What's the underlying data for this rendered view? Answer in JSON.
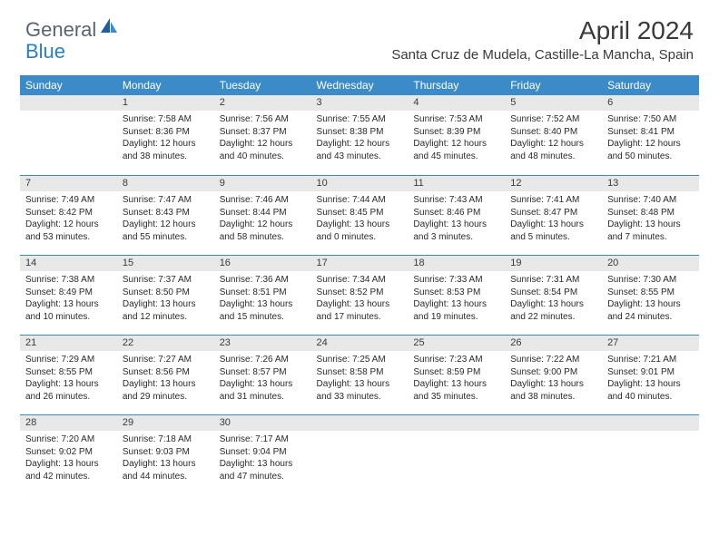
{
  "brand": {
    "text_general": "General",
    "text_blue": "Blue",
    "logo_color_dark": "#1e5f9e",
    "logo_color_light": "#3b8bc9"
  },
  "title": "April 2024",
  "location": "Santa Cruz de Mudela, Castille-La Mancha, Spain",
  "colors": {
    "header_bg": "#3b8bc9",
    "header_text": "#ffffff",
    "daynum_bg": "#e8e8e8",
    "divider": "#3b8bc9",
    "text": "#2a2a2a"
  },
  "weekdays": [
    "Sunday",
    "Monday",
    "Tuesday",
    "Wednesday",
    "Thursday",
    "Friday",
    "Saturday"
  ],
  "weeks": [
    [
      {
        "n": "",
        "sr": "",
        "ss": "",
        "dl": ""
      },
      {
        "n": "1",
        "sr": "7:58 AM",
        "ss": "8:36 PM",
        "dl": "12 hours and 38 minutes."
      },
      {
        "n": "2",
        "sr": "7:56 AM",
        "ss": "8:37 PM",
        "dl": "12 hours and 40 minutes."
      },
      {
        "n": "3",
        "sr": "7:55 AM",
        "ss": "8:38 PM",
        "dl": "12 hours and 43 minutes."
      },
      {
        "n": "4",
        "sr": "7:53 AM",
        "ss": "8:39 PM",
        "dl": "12 hours and 45 minutes."
      },
      {
        "n": "5",
        "sr": "7:52 AM",
        "ss": "8:40 PM",
        "dl": "12 hours and 48 minutes."
      },
      {
        "n": "6",
        "sr": "7:50 AM",
        "ss": "8:41 PM",
        "dl": "12 hours and 50 minutes."
      }
    ],
    [
      {
        "n": "7",
        "sr": "7:49 AM",
        "ss": "8:42 PM",
        "dl": "12 hours and 53 minutes."
      },
      {
        "n": "8",
        "sr": "7:47 AM",
        "ss": "8:43 PM",
        "dl": "12 hours and 55 minutes."
      },
      {
        "n": "9",
        "sr": "7:46 AM",
        "ss": "8:44 PM",
        "dl": "12 hours and 58 minutes."
      },
      {
        "n": "10",
        "sr": "7:44 AM",
        "ss": "8:45 PM",
        "dl": "13 hours and 0 minutes."
      },
      {
        "n": "11",
        "sr": "7:43 AM",
        "ss": "8:46 PM",
        "dl": "13 hours and 3 minutes."
      },
      {
        "n": "12",
        "sr": "7:41 AM",
        "ss": "8:47 PM",
        "dl": "13 hours and 5 minutes."
      },
      {
        "n": "13",
        "sr": "7:40 AM",
        "ss": "8:48 PM",
        "dl": "13 hours and 7 minutes."
      }
    ],
    [
      {
        "n": "14",
        "sr": "7:38 AM",
        "ss": "8:49 PM",
        "dl": "13 hours and 10 minutes."
      },
      {
        "n": "15",
        "sr": "7:37 AM",
        "ss": "8:50 PM",
        "dl": "13 hours and 12 minutes."
      },
      {
        "n": "16",
        "sr": "7:36 AM",
        "ss": "8:51 PM",
        "dl": "13 hours and 15 minutes."
      },
      {
        "n": "17",
        "sr": "7:34 AM",
        "ss": "8:52 PM",
        "dl": "13 hours and 17 minutes."
      },
      {
        "n": "18",
        "sr": "7:33 AM",
        "ss": "8:53 PM",
        "dl": "13 hours and 19 minutes."
      },
      {
        "n": "19",
        "sr": "7:31 AM",
        "ss": "8:54 PM",
        "dl": "13 hours and 22 minutes."
      },
      {
        "n": "20",
        "sr": "7:30 AM",
        "ss": "8:55 PM",
        "dl": "13 hours and 24 minutes."
      }
    ],
    [
      {
        "n": "21",
        "sr": "7:29 AM",
        "ss": "8:55 PM",
        "dl": "13 hours and 26 minutes."
      },
      {
        "n": "22",
        "sr": "7:27 AM",
        "ss": "8:56 PM",
        "dl": "13 hours and 29 minutes."
      },
      {
        "n": "23",
        "sr": "7:26 AM",
        "ss": "8:57 PM",
        "dl": "13 hours and 31 minutes."
      },
      {
        "n": "24",
        "sr": "7:25 AM",
        "ss": "8:58 PM",
        "dl": "13 hours and 33 minutes."
      },
      {
        "n": "25",
        "sr": "7:23 AM",
        "ss": "8:59 PM",
        "dl": "13 hours and 35 minutes."
      },
      {
        "n": "26",
        "sr": "7:22 AM",
        "ss": "9:00 PM",
        "dl": "13 hours and 38 minutes."
      },
      {
        "n": "27",
        "sr": "7:21 AM",
        "ss": "9:01 PM",
        "dl": "13 hours and 40 minutes."
      }
    ],
    [
      {
        "n": "28",
        "sr": "7:20 AM",
        "ss": "9:02 PM",
        "dl": "13 hours and 42 minutes."
      },
      {
        "n": "29",
        "sr": "7:18 AM",
        "ss": "9:03 PM",
        "dl": "13 hours and 44 minutes."
      },
      {
        "n": "30",
        "sr": "7:17 AM",
        "ss": "9:04 PM",
        "dl": "13 hours and 47 minutes."
      },
      {
        "n": "",
        "sr": "",
        "ss": "",
        "dl": ""
      },
      {
        "n": "",
        "sr": "",
        "ss": "",
        "dl": ""
      },
      {
        "n": "",
        "sr": "",
        "ss": "",
        "dl": ""
      },
      {
        "n": "",
        "sr": "",
        "ss": "",
        "dl": ""
      }
    ]
  ],
  "labels": {
    "sunrise_prefix": "Sunrise: ",
    "sunset_prefix": "Sunset: ",
    "daylight_prefix": "Daylight: "
  }
}
